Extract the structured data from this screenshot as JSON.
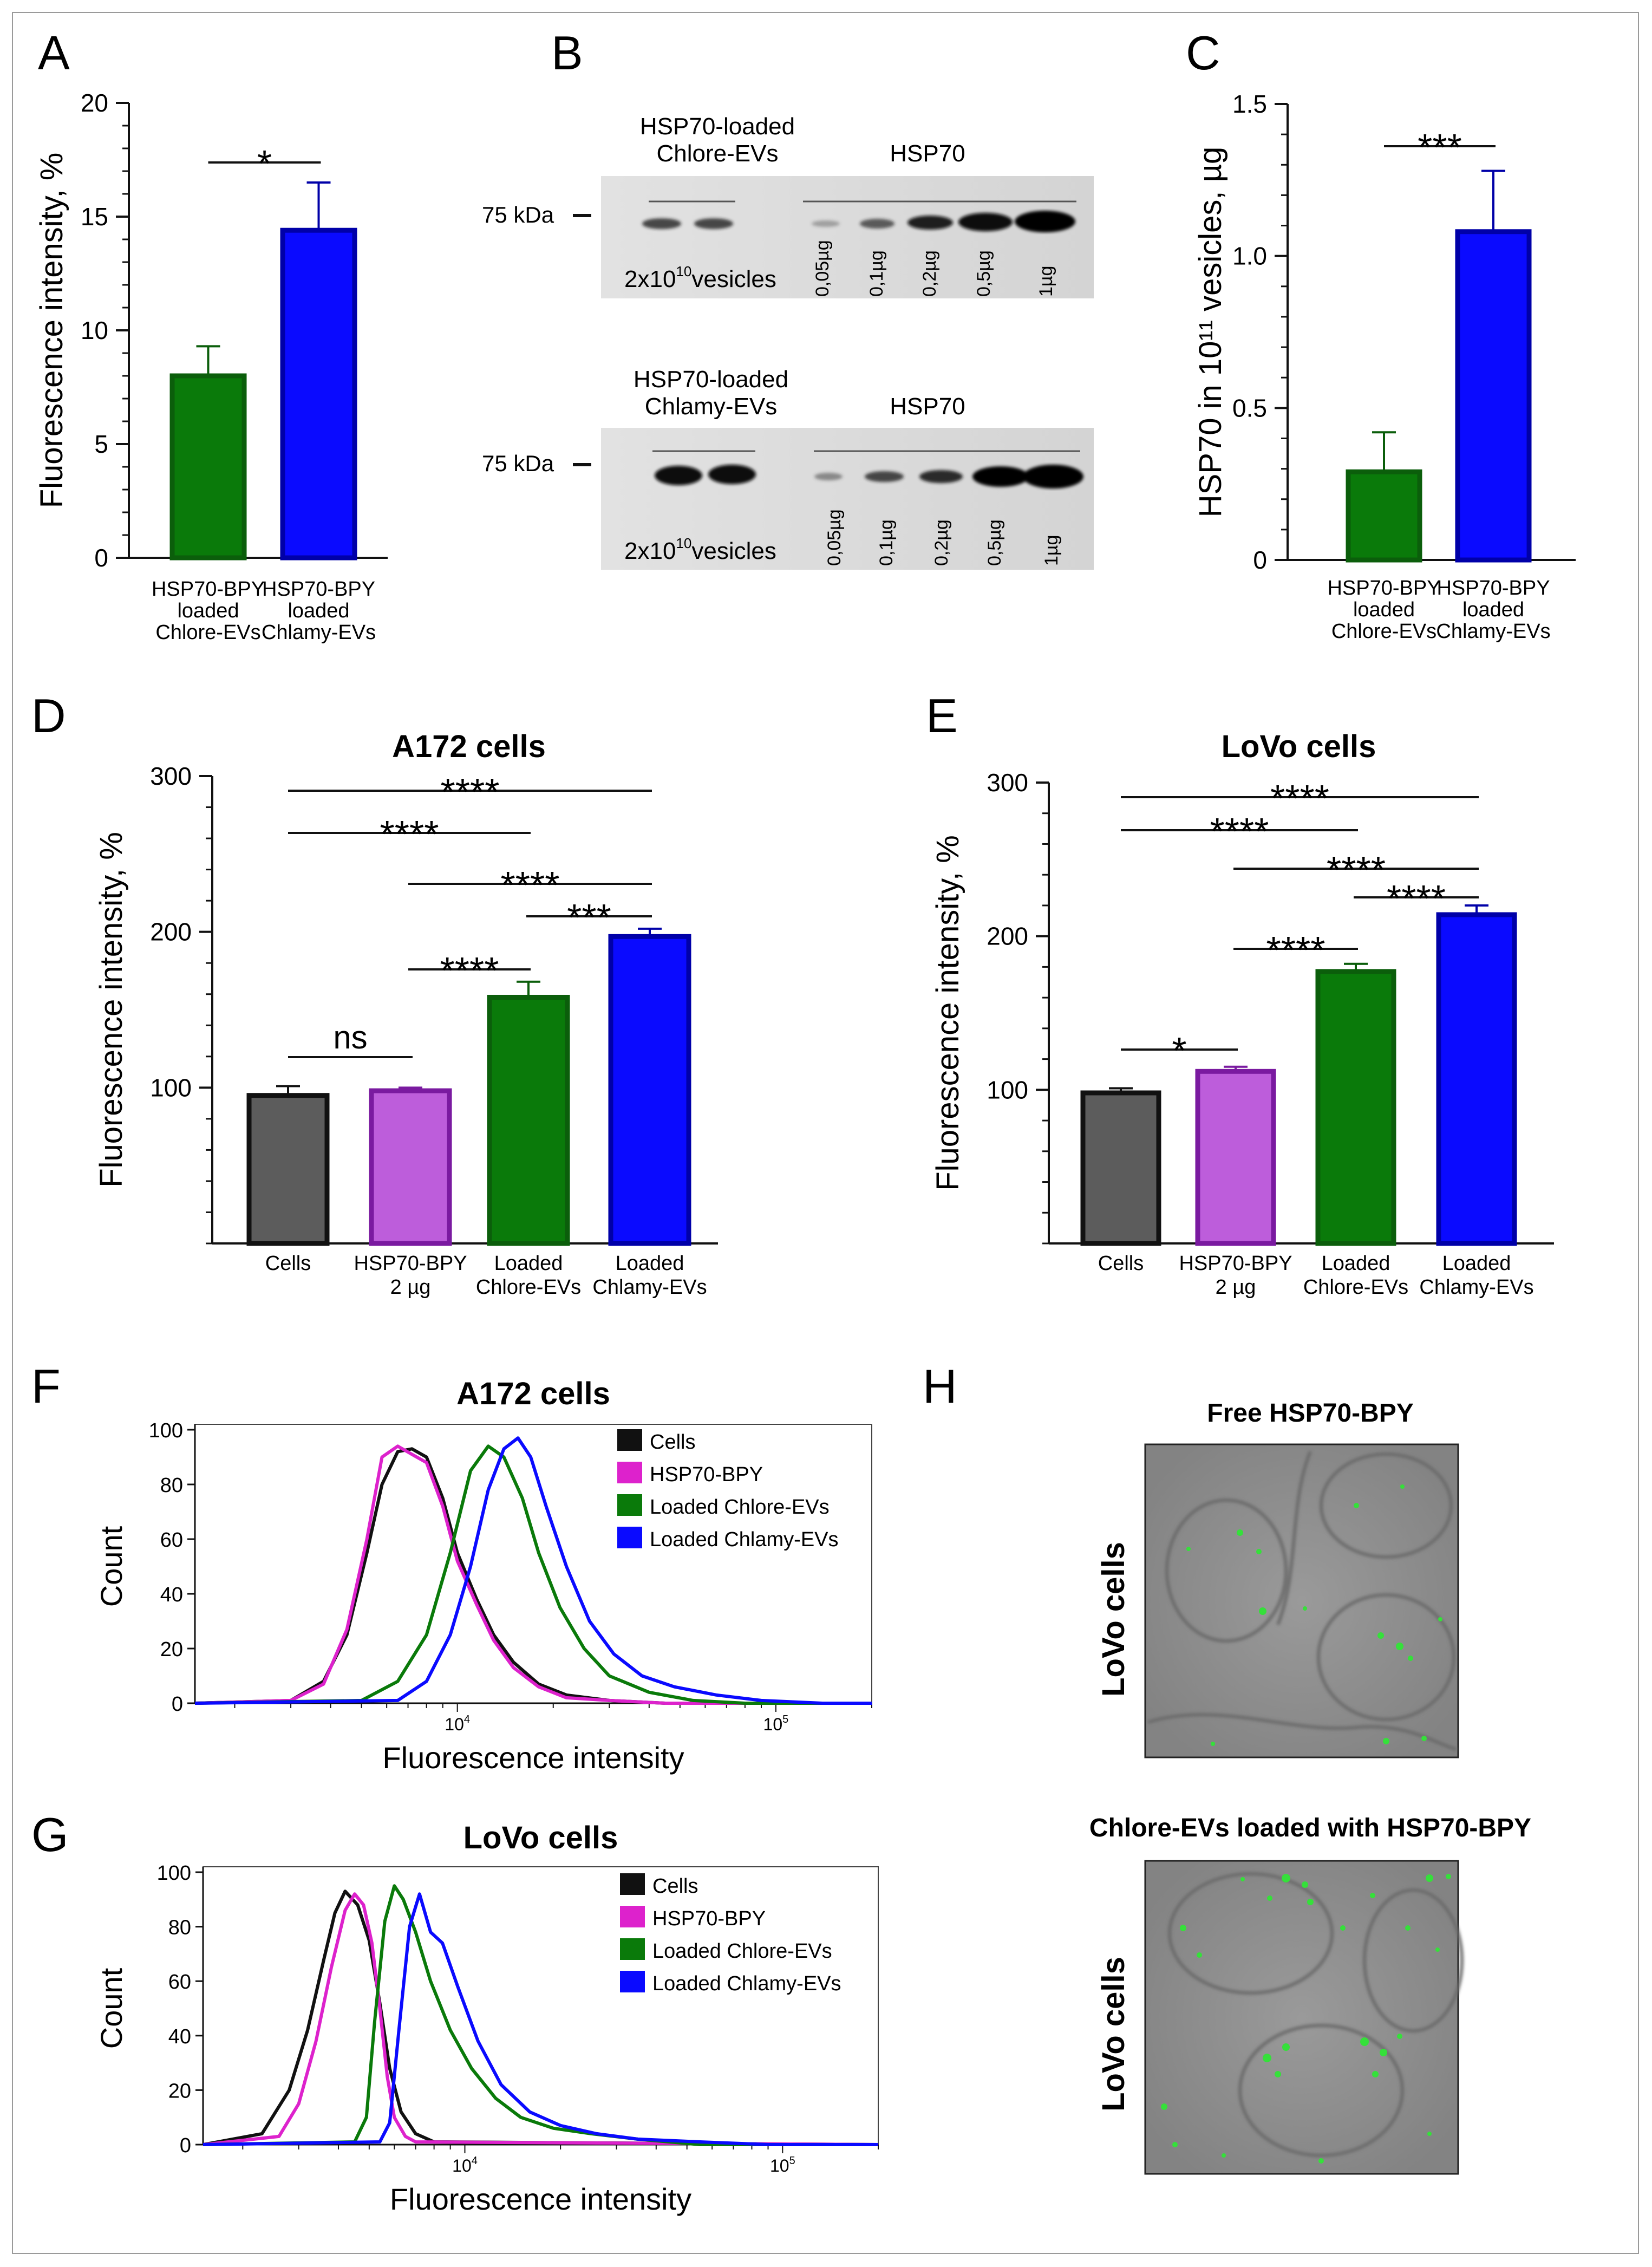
{
  "panel_letters": {
    "a": "A",
    "b": "B",
    "c": "C",
    "d": "D",
    "e": "E",
    "f": "F",
    "g": "G",
    "h": "H"
  },
  "colors": {
    "green": "#0a7a0a",
    "green_dark": "#0b5e0b",
    "blue": "#0a0aff",
    "blue_dark": "#0000a8",
    "grey": "#5c5c5c",
    "purple": "#bd5ddb",
    "purple_dark": "#7a1aa0",
    "magenta": "#dd22cc",
    "black": "#111111"
  },
  "chart_data": [
    {
      "id": "A",
      "type": "bar",
      "title": "",
      "ylabel": "Fluorescence intensity, %",
      "ylim": [
        0,
        20
      ],
      "yticks": [
        "0",
        "5",
        "10",
        "15",
        "20"
      ],
      "categories": [
        [
          "HSP70-BPY",
          "loaded",
          "Chlore-EVs"
        ],
        [
          "HSP70-BPY",
          "loaded",
          "Chlamy-EVs"
        ]
      ],
      "values": [
        8.0,
        14.4
      ],
      "errors": [
        1.3,
        2.1
      ],
      "bar_colors": [
        "green",
        "blue"
      ],
      "comparisons": [
        {
          "from": 0,
          "to": 1,
          "label": "*"
        }
      ]
    },
    {
      "id": "C",
      "type": "bar",
      "title": "",
      "ylabel": "HSP70  in 10¹¹ vesicles, µg",
      "ylim": [
        0,
        1.5
      ],
      "yticks": [
        "0",
        "0.5",
        "1.0",
        "1.5"
      ],
      "categories": [
        [
          "HSP70-BPY",
          "loaded",
          "Chlore-EVs"
        ],
        [
          "HSP70-BPY",
          "loaded",
          "Chlamy-EVs"
        ]
      ],
      "values": [
        0.29,
        1.08
      ],
      "errors": [
        0.13,
        0.2
      ],
      "bar_colors": [
        "green",
        "blue"
      ],
      "comparisons": [
        {
          "from": 0,
          "to": 1,
          "label": "***"
        }
      ]
    },
    {
      "id": "D",
      "type": "bar",
      "title": "A172 cells",
      "ylabel": "Fluorescence intensity, %",
      "ylim": [
        0,
        300
      ],
      "yticks": [
        "100",
        "200",
        "300"
      ],
      "categories": [
        [
          "Cells"
        ],
        [
          "HSP70-BPY",
          "2 µg"
        ],
        [
          "Loaded",
          "Chlore-EVs"
        ],
        [
          "Loaded",
          "Chlamy-EVs"
        ]
      ],
      "values": [
        95,
        98,
        158,
        197
      ],
      "errors": [
        6,
        2,
        10,
        5
      ],
      "bar_colors": [
        "grey",
        "purple",
        "green",
        "blue"
      ],
      "comparisons": [
        {
          "from": 0,
          "to": 3,
          "label": "****"
        },
        {
          "from": 0,
          "to": 2,
          "label": "****"
        },
        {
          "from": 1,
          "to": 3,
          "label": "****"
        },
        {
          "from": 2,
          "to": 3,
          "label": "***"
        },
        {
          "from": 1,
          "to": 2,
          "label": "****"
        },
        {
          "from": 0,
          "to": 1,
          "label": "ns"
        }
      ]
    },
    {
      "id": "E",
      "type": "bar",
      "title": "LoVo cells",
      "ylabel": "Fluorescence intensity, %",
      "ylim": [
        0,
        300
      ],
      "yticks": [
        "100",
        "200",
        "300"
      ],
      "categories": [
        [
          "Cells"
        ],
        [
          "HSP70-BPY",
          "2 µg"
        ],
        [
          "Loaded",
          "Chlore-EVs"
        ],
        [
          "Loaded",
          "Chlamy-EVs"
        ]
      ],
      "values": [
        98,
        112,
        177,
        214
      ],
      "errors": [
        3,
        3,
        5,
        6
      ],
      "bar_colors": [
        "grey",
        "purple",
        "green",
        "blue"
      ],
      "comparisons": [
        {
          "from": 0,
          "to": 3,
          "label": "****"
        },
        {
          "from": 0,
          "to": 2,
          "label": "****"
        },
        {
          "from": 1,
          "to": 3,
          "label": "****"
        },
        {
          "from": 2,
          "to": 3,
          "label": "****"
        },
        {
          "from": 1,
          "to": 2,
          "label": "****"
        },
        {
          "from": 0,
          "to": 1,
          "label": "*"
        }
      ]
    },
    {
      "id": "F",
      "type": "line",
      "title": "A172 cells",
      "xlabel": "Fluorescence intensity",
      "ylabel": "Count",
      "x_scale": "log",
      "xlim": [
        1500,
        200000
      ],
      "ylim": [
        0,
        100
      ],
      "yticks": [
        "0",
        "20",
        "40",
        "60",
        "80",
        "100"
      ],
      "xticks": [
        {
          "value": 10000,
          "base": "10",
          "exp": "4"
        },
        {
          "value": 100000,
          "base": "10",
          "exp": "5"
        }
      ],
      "legend_position": "top-right",
      "series": [
        {
          "name": "Cells",
          "color": "black",
          "x": [
            1500,
            3000,
            3800,
            4500,
            5200,
            5800,
            6500,
            7200,
            8000,
            9000,
            10000,
            11500,
            13000,
            15000,
            18000,
            22000,
            30000,
            45000,
            200000
          ],
          "y": [
            0,
            1,
            8,
            25,
            55,
            80,
            92,
            93,
            90,
            75,
            55,
            38,
            25,
            15,
            7,
            3,
            1,
            0,
            0
          ]
        },
        {
          "name": "HSP70-BPY",
          "color": "magenta",
          "x": [
            1500,
            3000,
            3800,
            4500,
            5200,
            5800,
            6500,
            7200,
            8000,
            9000,
            10000,
            11500,
            13000,
            15000,
            18000,
            22000,
            30000,
            45000,
            200000
          ],
          "y": [
            0,
            1,
            7,
            27,
            60,
            90,
            94,
            91,
            88,
            72,
            52,
            36,
            23,
            13,
            6,
            2,
            1,
            0,
            0
          ]
        },
        {
          "name": "Loaded Chlore-EVs",
          "color": "green",
          "x": [
            1500,
            5000,
            6500,
            8000,
            9500,
            11000,
            12500,
            14000,
            16000,
            18000,
            21000,
            25000,
            30000,
            40000,
            55000,
            80000,
            200000
          ],
          "y": [
            0,
            1,
            8,
            25,
            55,
            85,
            94,
            90,
            75,
            55,
            35,
            20,
            10,
            4,
            1,
            0,
            0
          ]
        },
        {
          "name": "Loaded Chlamy-EVs",
          "color": "blue",
          "x": [
            1500,
            6500,
            8000,
            9500,
            11000,
            12500,
            14000,
            15500,
            17000,
            19000,
            22000,
            26000,
            31000,
            38000,
            48000,
            65000,
            90000,
            140000,
            200000
          ],
          "y": [
            0,
            1,
            8,
            25,
            50,
            78,
            93,
            97,
            90,
            72,
            50,
            30,
            18,
            10,
            6,
            3,
            1,
            0,
            0
          ]
        }
      ]
    },
    {
      "id": "G",
      "type": "line",
      "title": "LoVo cells",
      "xlabel": "Fluorescence intensity",
      "ylabel": "Count",
      "x_scale": "log",
      "xlim": [
        1500,
        200000
      ],
      "ylim": [
        0,
        100
      ],
      "yticks": [
        "0",
        "20",
        "40",
        "60",
        "80",
        "100"
      ],
      "xticks": [
        {
          "value": 10000,
          "base": "10",
          "exp": "4"
        },
        {
          "value": 100000,
          "base": "10",
          "exp": "5"
        }
      ],
      "legend_position": "top-right",
      "series": [
        {
          "name": "Cells",
          "color": "black",
          "x": [
            1500,
            2300,
            2800,
            3200,
            3600,
            3900,
            4200,
            4600,
            5000,
            5400,
            5800,
            6300,
            7000,
            8000,
            200000
          ],
          "y": [
            0,
            4,
            20,
            42,
            68,
            85,
            93,
            88,
            75,
            52,
            28,
            12,
            4,
            1,
            0
          ]
        },
        {
          "name": "HSP70-BPY",
          "color": "magenta",
          "x": [
            1500,
            2600,
            3000,
            3400,
            3800,
            4200,
            4500,
            4800,
            5100,
            5400,
            5700,
            6000,
            6500,
            7000,
            200000
          ],
          "y": [
            0,
            3,
            15,
            38,
            65,
            86,
            92,
            88,
            74,
            50,
            25,
            10,
            3,
            1,
            0
          ]
        },
        {
          "name": "Loaded Chlore-EVs",
          "color": "green",
          "x": [
            1500,
            4500,
            4900,
            5200,
            5600,
            6000,
            6400,
            7000,
            7800,
            9000,
            10500,
            12500,
            15000,
            19000,
            25000,
            35000,
            55000,
            200000
          ],
          "y": [
            0,
            1,
            10,
            45,
            82,
            95,
            90,
            78,
            60,
            42,
            28,
            17,
            10,
            6,
            4,
            2,
            0,
            0
          ]
        },
        {
          "name": "Loaded Chlamy-EVs",
          "color": "blue",
          "x": [
            1500,
            5400,
            5800,
            6200,
            6700,
            7200,
            7800,
            8500,
            9500,
            11000,
            13000,
            16000,
            20000,
            26000,
            35000,
            55000,
            90000,
            200000
          ],
          "y": [
            0,
            1,
            8,
            42,
            80,
            92,
            78,
            74,
            58,
            38,
            22,
            12,
            7,
            4,
            2,
            1,
            0,
            0
          ]
        }
      ]
    }
  ],
  "blot_B": {
    "top": {
      "header_left": [
        "HSP70-loaded",
        "Chlore-EVs"
      ],
      "header_right": "HSP70",
      "marker": "75 kDa",
      "vesicles_base": "2x10",
      "vesicles_exp": "10",
      "vesicles_rest": "vesicles",
      "lanes": [
        "0,05µg",
        "0,1µg",
        "0,2µg",
        "0,5µg",
        "1µg"
      ]
    },
    "bottom": {
      "header_left": [
        "HSP70-loaded",
        "Chlamy-EVs"
      ],
      "header_right": "HSP70",
      "marker": "75 kDa",
      "vesicles_base": "2x10",
      "vesicles_exp": "10",
      "vesicles_rest": "vesicles",
      "lanes": [
        "0,05µg",
        "0,1µg",
        "0,2µg",
        "0,5µg",
        "1µg"
      ]
    }
  },
  "panel_H": {
    "top_title": "Free HSP70-BPY",
    "bottom_title": "Chlore-EVs loaded with HSP70-BPY",
    "side_label": "LoVo cells"
  }
}
